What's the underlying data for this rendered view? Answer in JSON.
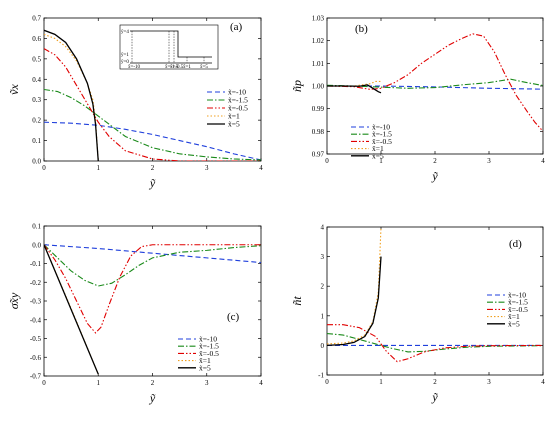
{
  "chart_data": [
    {
      "panel": "(a)",
      "type": "line",
      "xlabel": "ỹ",
      "ylabel": "ṽx",
      "xlim": [
        0,
        4
      ],
      "ylim": [
        0,
        0.7
      ],
      "xticks": [
        "0",
        "1",
        "2",
        "3",
        "4"
      ],
      "yticks": [
        "0.0",
        "0.1",
        "0.2",
        "0.3",
        "0.4",
        "0.5",
        "0.6",
        "0.7"
      ],
      "legend_position": "right",
      "series": [
        {
          "name": "x̃=-10",
          "color": "#1f3fdc",
          "dash": "dash",
          "points": [
            [
              0,
              0.19
            ],
            [
              0.5,
              0.185
            ],
            [
              1,
              0.175
            ],
            [
              1.5,
              0.155
            ],
            [
              2,
              0.13
            ],
            [
              2.5,
              0.1
            ],
            [
              3,
              0.07
            ],
            [
              3.5,
              0.035
            ],
            [
              4,
              0.005
            ]
          ]
        },
        {
          "name": "x̃=-1.5",
          "color": "#1a8a1a",
          "dash": "dashdot",
          "points": [
            [
              0,
              0.35
            ],
            [
              0.25,
              0.34
            ],
            [
              0.5,
              0.31
            ],
            [
              0.75,
              0.27
            ],
            [
              1,
              0.22
            ],
            [
              1.25,
              0.17
            ],
            [
              1.5,
              0.12
            ],
            [
              2,
              0.065
            ],
            [
              2.5,
              0.035
            ],
            [
              3,
              0.02
            ],
            [
              3.5,
              0.01
            ],
            [
              4,
              0.005
            ]
          ]
        },
        {
          "name": "x̃=-0.5",
          "color": "#e00000",
          "dash": "dashdotdot",
          "points": [
            [
              0,
              0.55
            ],
            [
              0.2,
              0.52
            ],
            [
              0.4,
              0.46
            ],
            [
              0.6,
              0.37
            ],
            [
              0.8,
              0.28
            ],
            [
              1,
              0.19
            ],
            [
              1.2,
              0.12
            ],
            [
              1.5,
              0.05
            ],
            [
              2,
              0.01
            ],
            [
              2.5,
              0.0
            ],
            [
              3,
              0.0
            ],
            [
              3.5,
              0.0
            ],
            [
              4,
              0.0
            ]
          ]
        },
        {
          "name": "x̃=1",
          "color": "#f0a020",
          "dash": "dot",
          "points": [
            [
              0,
              0.62
            ],
            [
              0.2,
              0.6
            ],
            [
              0.4,
              0.56
            ],
            [
              0.6,
              0.49
            ],
            [
              0.8,
              0.38
            ],
            [
              0.9,
              0.3
            ],
            [
              0.95,
              0.2
            ],
            [
              1,
              0.0
            ]
          ]
        },
        {
          "name": "x̃=5",
          "color": "#000000",
          "dash": "solid",
          "points": [
            [
              0,
              0.64
            ],
            [
              0.2,
              0.62
            ],
            [
              0.4,
              0.58
            ],
            [
              0.6,
              0.5
            ],
            [
              0.8,
              0.38
            ],
            [
              0.9,
              0.28
            ],
            [
              0.95,
              0.18
            ],
            [
              1,
              0.0
            ]
          ]
        }
      ],
      "inset": {
        "y_labels": [
          "ỹ=4",
          "ỹ=1",
          "ỹ=0"
        ],
        "x_labels": [
          "x̃=-10",
          "x̃=-1.5",
          "x̃=-0.5",
          "x̃=1",
          "x̃=5"
        ]
      }
    },
    {
      "panel": "(b)",
      "type": "line",
      "xlabel": "ỹ",
      "ylabel": "ñp",
      "xlim": [
        0,
        4
      ],
      "ylim": [
        0.97,
        1.03
      ],
      "xticks": [
        "0",
        "1",
        "2",
        "3",
        "4"
      ],
      "yticks": [
        "0.97",
        "0.98",
        "0.99",
        "1.00",
        "1.01",
        "1.02",
        "1.03"
      ],
      "legend_position": "bottom-left",
      "series": [
        {
          "name": "x̃=-10",
          "color": "#1f3fdc",
          "dash": "dash",
          "points": [
            [
              0,
              1.0
            ],
            [
              0.5,
              1.0
            ],
            [
              1,
              1.0
            ],
            [
              1.5,
              0.9998
            ],
            [
              2,
              0.9996
            ],
            [
              2.5,
              0.9993
            ],
            [
              3,
              0.999
            ],
            [
              3.5,
              0.9988
            ],
            [
              4,
              0.9986
            ]
          ]
        },
        {
          "name": "x̃=-1.5",
          "color": "#1a8a1a",
          "dash": "dashdot",
          "points": [
            [
              0,
              1.0003
            ],
            [
              0.5,
              1.0
            ],
            [
              1,
              0.9995
            ],
            [
              1.5,
              0.999
            ],
            [
              2,
              0.9993
            ],
            [
              2.5,
              1.0005
            ],
            [
              3,
              1.0015
            ],
            [
              3.4,
              1.003
            ],
            [
              3.7,
              1.0015
            ],
            [
              4,
              1.0002
            ]
          ]
        },
        {
          "name": "x̃=-0.5",
          "color": "#e00000",
          "dash": "dashdotdot",
          "points": [
            [
              0,
              1.0
            ],
            [
              0.5,
              0.9997
            ],
            [
              0.8,
              0.9985
            ],
            [
              1,
              0.999
            ],
            [
              1.25,
              1.0015
            ],
            [
              1.5,
              1.005
            ],
            [
              1.75,
              1.01
            ],
            [
              2,
              1.014
            ],
            [
              2.25,
              1.018
            ],
            [
              2.5,
              1.021
            ],
            [
              2.7,
              1.023
            ],
            [
              2.9,
              1.022
            ],
            [
              3.1,
              1.015
            ],
            [
              3.3,
              1.005
            ],
            [
              3.5,
              0.996
            ],
            [
              3.7,
              0.989
            ],
            [
              3.85,
              0.984
            ],
            [
              4,
              0.98
            ]
          ]
        },
        {
          "name": "x̃=1",
          "color": "#f0a020",
          "dash": "dot",
          "points": [
            [
              0,
              1.0
            ],
            [
              0.5,
              1.0
            ],
            [
              0.8,
              1.001
            ],
            [
              0.9,
              1.002
            ],
            [
              1,
              1.002
            ]
          ]
        },
        {
          "name": "x̃=5",
          "color": "#000000",
          "dash": "solid",
          "points": [
            [
              0,
              1.0
            ],
            [
              0.3,
              1.0
            ],
            [
              0.6,
              0.9999
            ],
            [
              0.75,
              1.0005
            ],
            [
              0.85,
              0.999
            ],
            [
              0.95,
              0.9975
            ],
            [
              1,
              0.997
            ]
          ]
        }
      ]
    },
    {
      "panel": "(c)",
      "type": "line",
      "xlabel": "ỹ",
      "ylabel": "σ̃xy",
      "xlim": [
        0,
        4
      ],
      "ylim": [
        -0.7,
        0.1
      ],
      "xticks": [
        "0",
        "1",
        "2",
        "3",
        "4"
      ],
      "yticks": [
        "-0.7",
        "-0.6",
        "-0.5",
        "-0.4",
        "-0.3",
        "-0.2",
        "-0.1",
        "0.0",
        "0.1"
      ],
      "legend_position": "bottom-right",
      "series": [
        {
          "name": "x̃=-10",
          "color": "#1f3fdc",
          "dash": "dash",
          "points": [
            [
              0,
              0.0
            ],
            [
              1,
              -0.02
            ],
            [
              2,
              -0.045
            ],
            [
              3,
              -0.07
            ],
            [
              4,
              -0.095
            ]
          ]
        },
        {
          "name": "x̃=-1.5",
          "color": "#1a8a1a",
          "dash": "dashdot",
          "points": [
            [
              0,
              0.0
            ],
            [
              0.25,
              -0.07
            ],
            [
              0.5,
              -0.14
            ],
            [
              0.75,
              -0.19
            ],
            [
              1,
              -0.22
            ],
            [
              1.25,
              -0.205
            ],
            [
              1.5,
              -0.16
            ],
            [
              1.75,
              -0.11
            ],
            [
              2,
              -0.07
            ],
            [
              2.5,
              -0.04
            ],
            [
              3,
              -0.03
            ],
            [
              3.5,
              -0.015
            ],
            [
              4,
              -0.005
            ]
          ]
        },
        {
          "name": "x̃=-0.5",
          "color": "#e00000",
          "dash": "dashdotdot",
          "points": [
            [
              0,
              0.0
            ],
            [
              0.2,
              -0.08
            ],
            [
              0.4,
              -0.18
            ],
            [
              0.6,
              -0.3
            ],
            [
              0.8,
              -0.42
            ],
            [
              0.95,
              -0.47
            ],
            [
              1.05,
              -0.44
            ],
            [
              1.2,
              -0.32
            ],
            [
              1.4,
              -0.17
            ],
            [
              1.6,
              -0.06
            ],
            [
              1.8,
              -0.01
            ],
            [
              2,
              0.0
            ],
            [
              2.5,
              0.0
            ],
            [
              3,
              0.0
            ],
            [
              4,
              0.0
            ]
          ]
        },
        {
          "name": "x̃=1",
          "color": "#f0a020",
          "dash": "dot",
          "points": [
            [
              0,
              0.0
            ],
            [
              0.5,
              -0.34
            ],
            [
              1,
              -0.69
            ]
          ]
        },
        {
          "name": "x̃=5",
          "color": "#000000",
          "dash": "solid",
          "points": [
            [
              0,
              0.0
            ],
            [
              0.5,
              -0.345
            ],
            [
              1,
              -0.69
            ]
          ]
        }
      ]
    },
    {
      "panel": "(d)",
      "type": "line",
      "xlabel": "ỹ",
      "ylabel": "ñt",
      "xlim": [
        0,
        4
      ],
      "ylim": [
        -1,
        4
      ],
      "xticks": [
        "0",
        "1",
        "2",
        "3",
        "4"
      ],
      "yticks": [
        "-1",
        "0",
        "1",
        "2",
        "3",
        "4"
      ],
      "legend_position": "top-right",
      "series": [
        {
          "name": "x̃=-10",
          "color": "#1f3fdc",
          "dash": "dash",
          "points": [
            [
              0,
              0.0
            ],
            [
              1,
              0.0
            ],
            [
              2,
              0.0
            ],
            [
              3,
              0.0
            ],
            [
              4,
              0.0
            ]
          ]
        },
        {
          "name": "x̃=-1.5",
          "color": "#1a8a1a",
          "dash": "dashdot",
          "points": [
            [
              0,
              0.4
            ],
            [
              0.3,
              0.35
            ],
            [
              0.6,
              0.2
            ],
            [
              0.9,
              0.05
            ],
            [
              1.2,
              -0.1
            ],
            [
              1.5,
              -0.22
            ],
            [
              1.8,
              -0.2
            ],
            [
              2.2,
              -0.12
            ],
            [
              2.6,
              -0.06
            ],
            [
              3,
              -0.03
            ],
            [
              4,
              -0.01
            ]
          ]
        },
        {
          "name": "x̃=-0.5",
          "color": "#e00000",
          "dash": "dashdotdot",
          "points": [
            [
              0,
              0.7
            ],
            [
              0.3,
              0.7
            ],
            [
              0.6,
              0.6
            ],
            [
              0.9,
              0.3
            ],
            [
              1.1,
              -0.2
            ],
            [
              1.3,
              -0.55
            ],
            [
              1.5,
              -0.45
            ],
            [
              1.8,
              -0.22
            ],
            [
              2.2,
              -0.08
            ],
            [
              2.6,
              -0.03
            ],
            [
              3,
              -0.01
            ],
            [
              4,
              0.0
            ]
          ]
        },
        {
          "name": "x̃=1",
          "color": "#f0a020",
          "dash": "dot",
          "points": [
            [
              0,
              0.05
            ],
            [
              0.3,
              0.08
            ],
            [
              0.5,
              0.15
            ],
            [
              0.7,
              0.35
            ],
            [
              0.85,
              0.8
            ],
            [
              0.95,
              1.8
            ],
            [
              1,
              4.0
            ]
          ]
        },
        {
          "name": "x̃=5",
          "color": "#000000",
          "dash": "solid",
          "points": [
            [
              0,
              0.0
            ],
            [
              0.3,
              0.03
            ],
            [
              0.5,
              0.1
            ],
            [
              0.7,
              0.3
            ],
            [
              0.85,
              0.75
            ],
            [
              0.95,
              1.6
            ],
            [
              1,
              3.0
            ]
          ]
        }
      ]
    }
  ]
}
